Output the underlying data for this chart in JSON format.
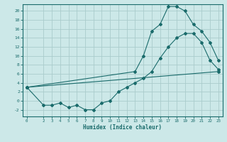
{
  "xlabel": "Humidex (Indice chaleur)",
  "bg_color": "#cce8e8",
  "grid_color": "#aacccc",
  "line_color": "#1a6b6b",
  "xlim": [
    -0.5,
    23.5
  ],
  "ylim": [
    -3.5,
    21.5
  ],
  "xticks": [
    0,
    2,
    3,
    4,
    5,
    6,
    7,
    8,
    9,
    10,
    11,
    12,
    13,
    14,
    15,
    16,
    17,
    18,
    19,
    20,
    21,
    22,
    23
  ],
  "yticks": [
    -2,
    0,
    2,
    4,
    6,
    8,
    10,
    12,
    14,
    16,
    18,
    20
  ],
  "line1_x": [
    0,
    2,
    3,
    4,
    5,
    6,
    7,
    8,
    9,
    10,
    11,
    12,
    13,
    14,
    15,
    16,
    17,
    18,
    19,
    20,
    21,
    22,
    23
  ],
  "line1_y": [
    3,
    -1,
    -1,
    -0.5,
    -1.5,
    -1,
    -2,
    -2,
    -0.5,
    0,
    2,
    3,
    4,
    5,
    6.5,
    9.5,
    12,
    14,
    15,
    15,
    13,
    9,
    7
  ],
  "line2_x": [
    0,
    13,
    14,
    15,
    16,
    17,
    18,
    19,
    20,
    21,
    22,
    23
  ],
  "line2_y": [
    3,
    6.5,
    10,
    15.5,
    17,
    21,
    21,
    20,
    17,
    15.5,
    13,
    9
  ],
  "line3_x": [
    0,
    23
  ],
  "line3_y": [
    3,
    6.5
  ]
}
